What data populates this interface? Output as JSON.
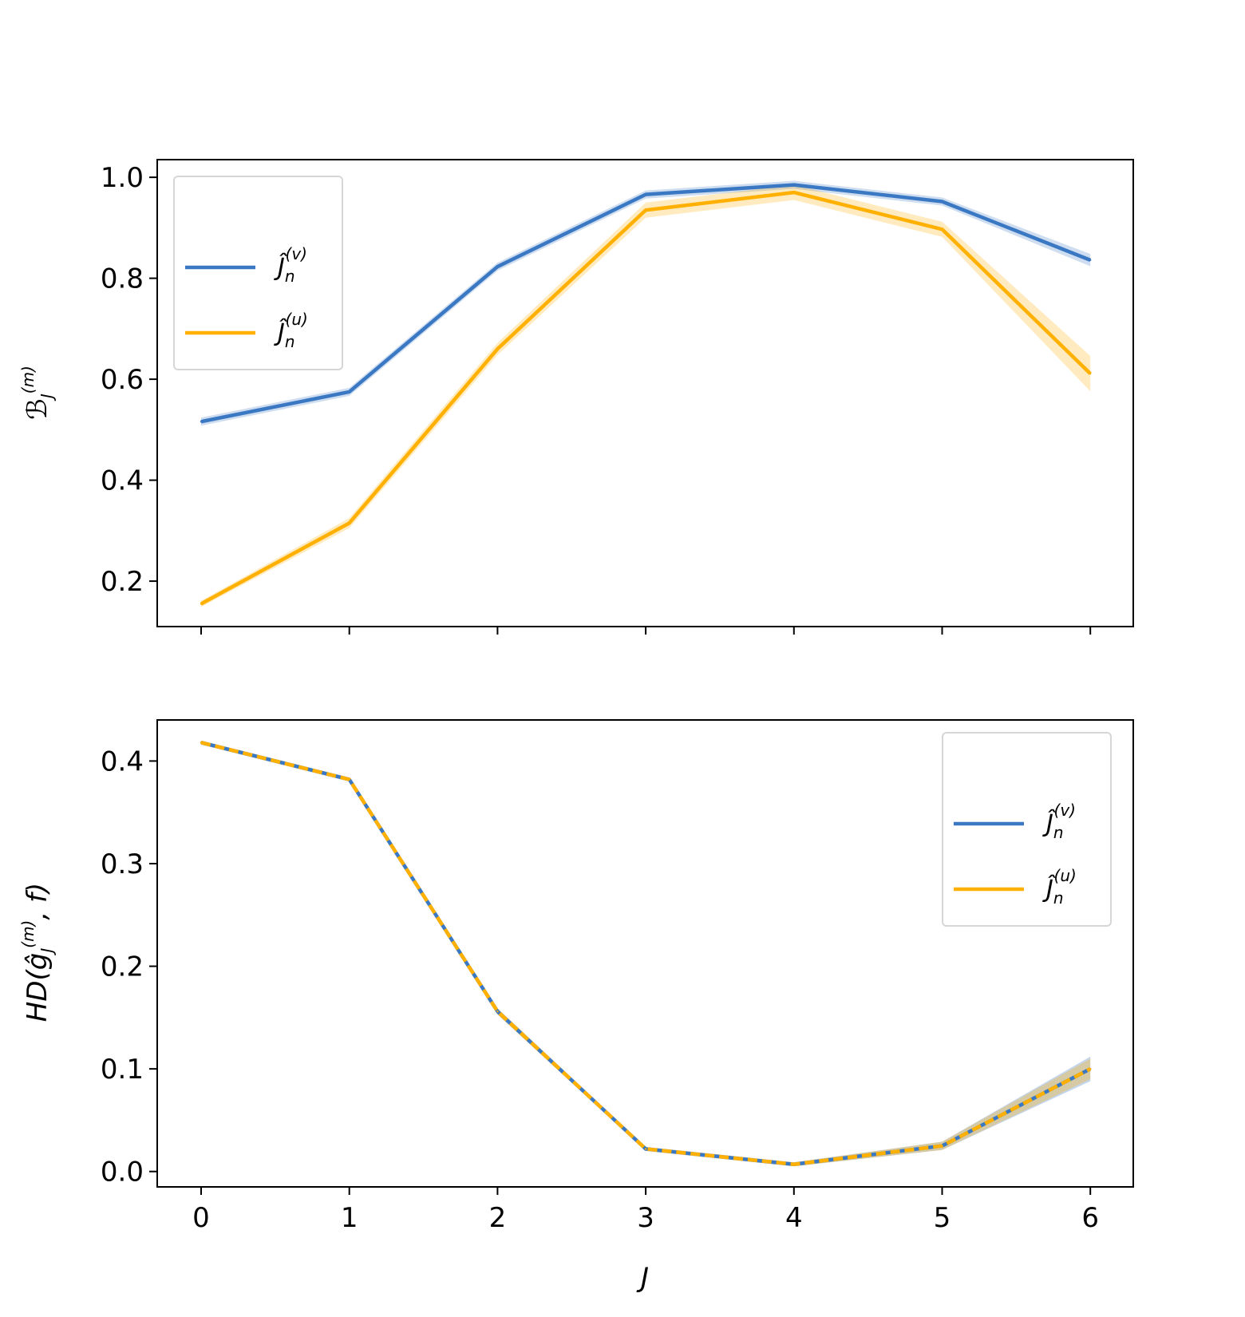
{
  "chart_data": [
    {
      "type": "line",
      "x": [
        0,
        1,
        2,
        3,
        4,
        5,
        6
      ],
      "xlabel": "",
      "ylabel": "B̂_J^(m)",
      "ylim": [
        0.11,
        1.035
      ],
      "yticks": [
        "0.2",
        "0.4",
        "0.6",
        "0.8",
        "1.0"
      ],
      "xticks": [],
      "legend_position": "upper-left",
      "grid": false,
      "series": [
        {
          "name": "Ĵ_n^(v)",
          "name_base": "Ĵ",
          "name_sub": "n",
          "name_sup": "(v)",
          "color": "#3a78c3",
          "style": "solid",
          "values": [
            0.516,
            0.575,
            0.823,
            0.966,
            0.985,
            0.952,
            0.836
          ],
          "band": [
            0.008,
            0.008,
            0.008,
            0.008,
            0.008,
            0.008,
            0.012
          ]
        },
        {
          "name": "Ĵ_n^(u)",
          "name_base": "Ĵ",
          "name_sub": "n",
          "name_sup": "(u)",
          "color": "#ffb000",
          "style": "solid",
          "values": [
            0.155,
            0.315,
            0.66,
            0.935,
            0.97,
            0.897,
            0.611
          ],
          "band": [
            0.006,
            0.01,
            0.012,
            0.015,
            0.015,
            0.015,
            0.035
          ]
        }
      ]
    },
    {
      "type": "line",
      "x": [
        0,
        1,
        2,
        3,
        4,
        5,
        6
      ],
      "xlabel": "J",
      "ylabel": "HD(ĝ_J^(m), f)",
      "ylim": [
        -0.015,
        0.44
      ],
      "yticks": [
        "0.0",
        "0.1",
        "0.2",
        "0.3",
        "0.4"
      ],
      "xticks": [
        "0",
        "1",
        "2",
        "3",
        "4",
        "5",
        "6"
      ],
      "legend_position": "upper-right",
      "grid": false,
      "series": [
        {
          "name": "Ĵ_n^(v)",
          "name_base": "Ĵ",
          "name_sub": "n",
          "name_sup": "(v)",
          "color": "#3a78c3",
          "style": "solid",
          "values": [
            0.418,
            0.382,
            0.156,
            0.022,
            0.007,
            0.025,
            0.1
          ],
          "band": [
            0.002,
            0.002,
            0.003,
            0.002,
            0.002,
            0.004,
            0.012
          ]
        },
        {
          "name": "Ĵ_n^(u)",
          "name_base": "Ĵ",
          "name_sub": "n",
          "name_sup": "(u)",
          "color": "#ffb000",
          "style": "dashed",
          "values": [
            0.418,
            0.382,
            0.156,
            0.022,
            0.007,
            0.025,
            0.1
          ],
          "band": [
            0.002,
            0.002,
            0.003,
            0.002,
            0.002,
            0.004,
            0.01
          ]
        }
      ]
    }
  ]
}
